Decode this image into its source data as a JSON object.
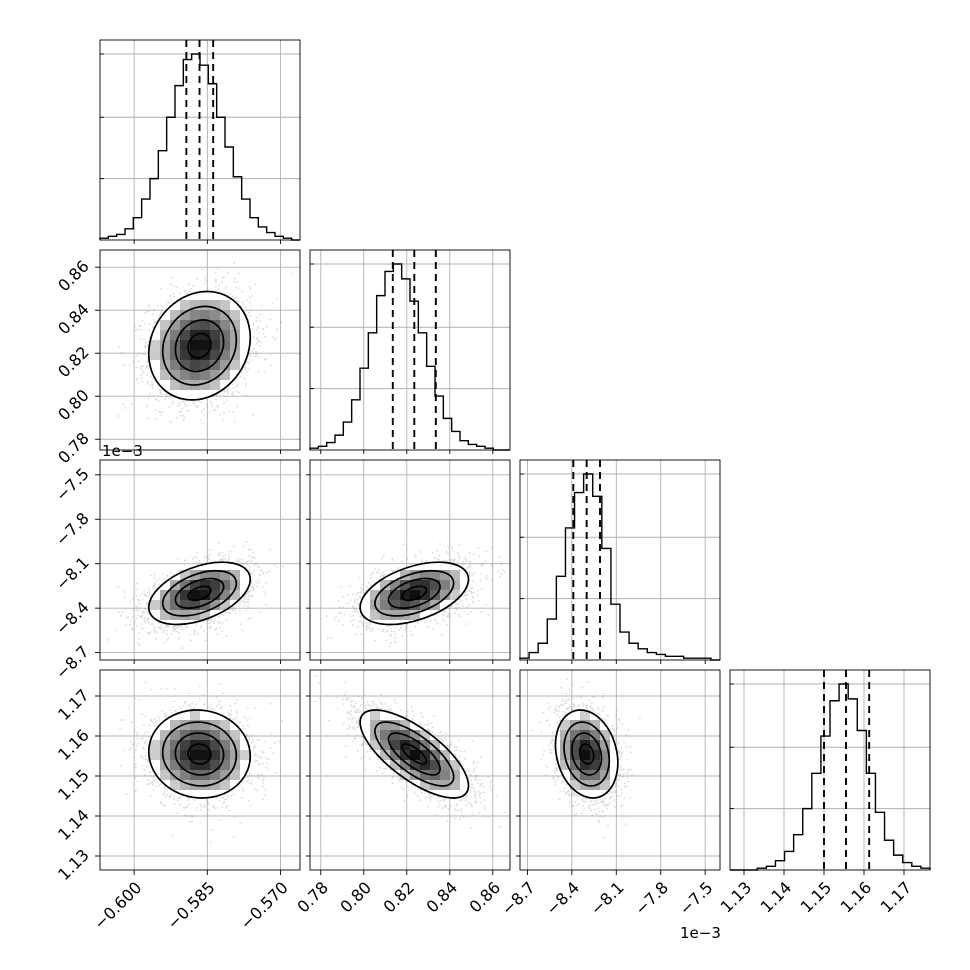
{
  "chart_data": {
    "type": "corner",
    "grid": true,
    "colors": {
      "axes": "#000000",
      "grid": "#b0b0b0",
      "scatter": "#9a9a9a"
    },
    "parameters": [
      {
        "range": [
          -0.607,
          -0.566
        ],
        "ticks": [
          -0.6,
          -0.585,
          -0.57
        ],
        "tick_labels": [
          "−0.600",
          "−0.585",
          "−0.570"
        ],
        "offset_label": "",
        "median": -0.5866,
        "quantiles": [
          -0.5893,
          -0.5866,
          -0.5838
        ]
      },
      {
        "range": [
          0.775,
          0.868
        ],
        "ticks": [
          0.78,
          0.8,
          0.82,
          0.84,
          0.86
        ],
        "tick_labels": [
          "0.78",
          "0.80",
          "0.82",
          "0.84",
          "0.86"
        ],
        "offset_label": "",
        "median": 0.8235,
        "quantiles": [
          0.8135,
          0.8235,
          0.8335
        ]
      },
      {
        "range": [
          -8.75,
          -7.4
        ],
        "ticks": [
          -8.7,
          -8.4,
          -8.1,
          -7.8,
          -7.5
        ],
        "tick_labels": [
          "−8.7",
          "−8.4",
          "−8.1",
          "−7.8",
          "−7.5"
        ],
        "offset_label": "1e−3",
        "median": -8.3,
        "quantiles": [
          -8.39,
          -8.3,
          -8.21
        ]
      },
      {
        "range": [
          1.1265,
          1.1765
        ],
        "ticks": [
          1.13,
          1.14,
          1.15,
          1.16,
          1.17
        ],
        "tick_labels": [
          "1.13",
          "1.14",
          "1.15",
          "1.16",
          "1.17"
        ],
        "offset_label": "",
        "median": 1.1555,
        "quantiles": [
          1.15,
          1.1555,
          1.1613
        ]
      }
    ],
    "histograms": [
      {
        "counts": [
          1,
          2,
          3,
          6,
          12,
          22,
          33,
          48,
          66,
          83,
          97,
          100,
          94,
          84,
          66,
          50,
          34,
          22,
          12,
          7,
          4,
          2,
          1,
          0
        ]
      },
      {
        "counts": [
          1,
          2,
          4,
          8,
          15,
          27,
          44,
          63,
          83,
          96,
          100,
          92,
          80,
          63,
          45,
          29,
          17,
          10,
          5,
          3,
          2,
          1,
          0,
          0
        ]
      },
      {
        "counts": [
          1,
          4,
          9,
          22,
          45,
          71,
          90,
          100,
          88,
          60,
          30,
          15,
          9,
          6,
          4,
          3,
          2,
          2,
          1,
          1,
          1,
          0
        ]
      },
      {
        "counts": [
          0,
          0,
          0,
          1,
          2,
          5,
          10,
          19,
          33,
          52,
          72,
          91,
          100,
          92,
          75,
          52,
          31,
          16,
          8,
          4,
          2,
          1
        ]
      }
    ],
    "pairs": [
      {
        "x": 0,
        "y": 1,
        "mean": [
          -0.5866,
          0.8235
        ],
        "sd": [
          0.0052,
          0.0126
        ],
        "rho": 0.15
      },
      {
        "x": 0,
        "y": 2,
        "mean": [
          -0.5866,
          -8.3
        ],
        "sd": [
          0.0052,
          0.105
        ],
        "rho": 0.45
      },
      {
        "x": 1,
        "y": 2,
        "mean": [
          0.8235,
          -8.3
        ],
        "sd": [
          0.0126,
          0.105
        ],
        "rho": 0.45
      },
      {
        "x": 0,
        "y": 3,
        "mean": [
          -0.5866,
          1.1555
        ],
        "sd": [
          0.0052,
          0.0055
        ],
        "rho": -0.05
      },
      {
        "x": 1,
        "y": 3,
        "mean": [
          0.8235,
          1.1555
        ],
        "sd": [
          0.0126,
          0.0055
        ],
        "rho": -0.72
      },
      {
        "x": 2,
        "y": 3,
        "mean": [
          -8.3,
          1.1555
        ],
        "sd": [
          0.105,
          0.0055
        ],
        "rho": -0.2
      }
    ]
  }
}
